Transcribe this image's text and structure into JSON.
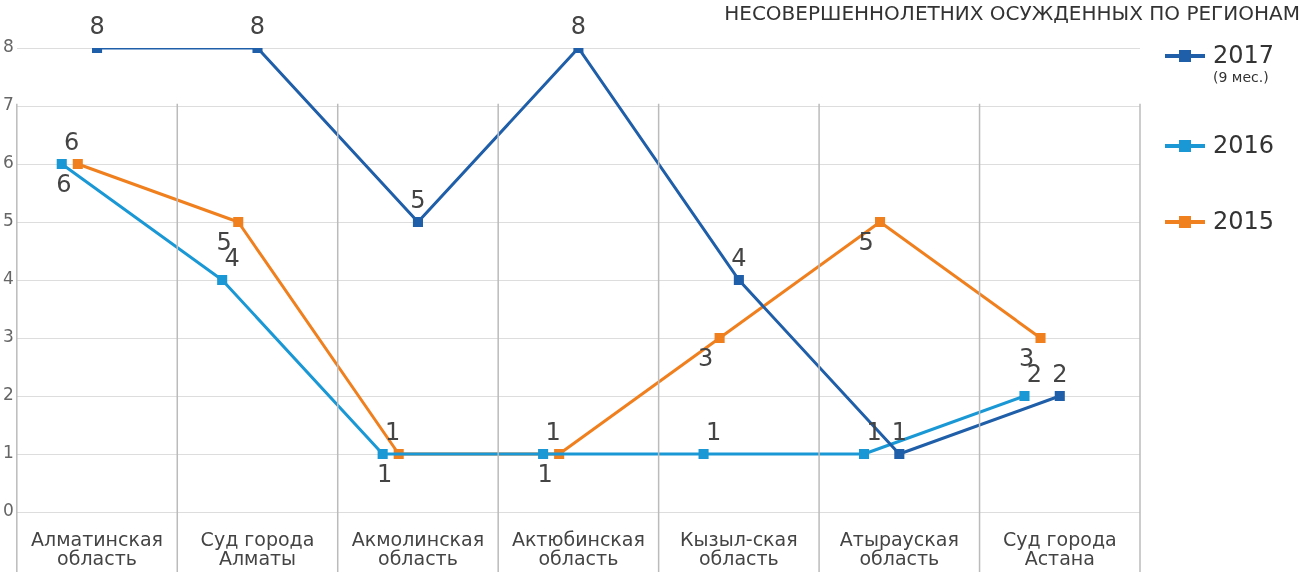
{
  "chart_data": {
    "type": "line",
    "title": "НЕСОВЕРШЕННОЛЕТНИХ ОСУЖДЕННЫХ ПО РЕГИОНАМ",
    "categories": [
      "Алматинская область",
      "Суд города Алматы",
      "Акмолинская область",
      "Актюбинская область",
      "Кызыл-ская область",
      "Атырауская область",
      "Суд города Астана"
    ],
    "series": [
      {
        "name": "2017 (9 мес.)",
        "color": "#1f5ea8",
        "values": [
          8,
          8,
          5,
          8,
          4,
          1,
          2
        ]
      },
      {
        "name": "2016",
        "color": "#1a98d5",
        "values": [
          6,
          4,
          1,
          1,
          1,
          1,
          2
        ]
      },
      {
        "name": "2015",
        "color": "#f07f1e",
        "values": [
          6,
          5,
          1,
          1,
          3,
          5,
          3
        ]
      }
    ],
    "ylim": [
      0,
      8
    ],
    "yticks": [
      0,
      1,
      2,
      3,
      4,
      5,
      6,
      7,
      8
    ],
    "grid": true,
    "legend": "right",
    "marker": "square",
    "line_style": "solid",
    "data_labels": true
  }
}
